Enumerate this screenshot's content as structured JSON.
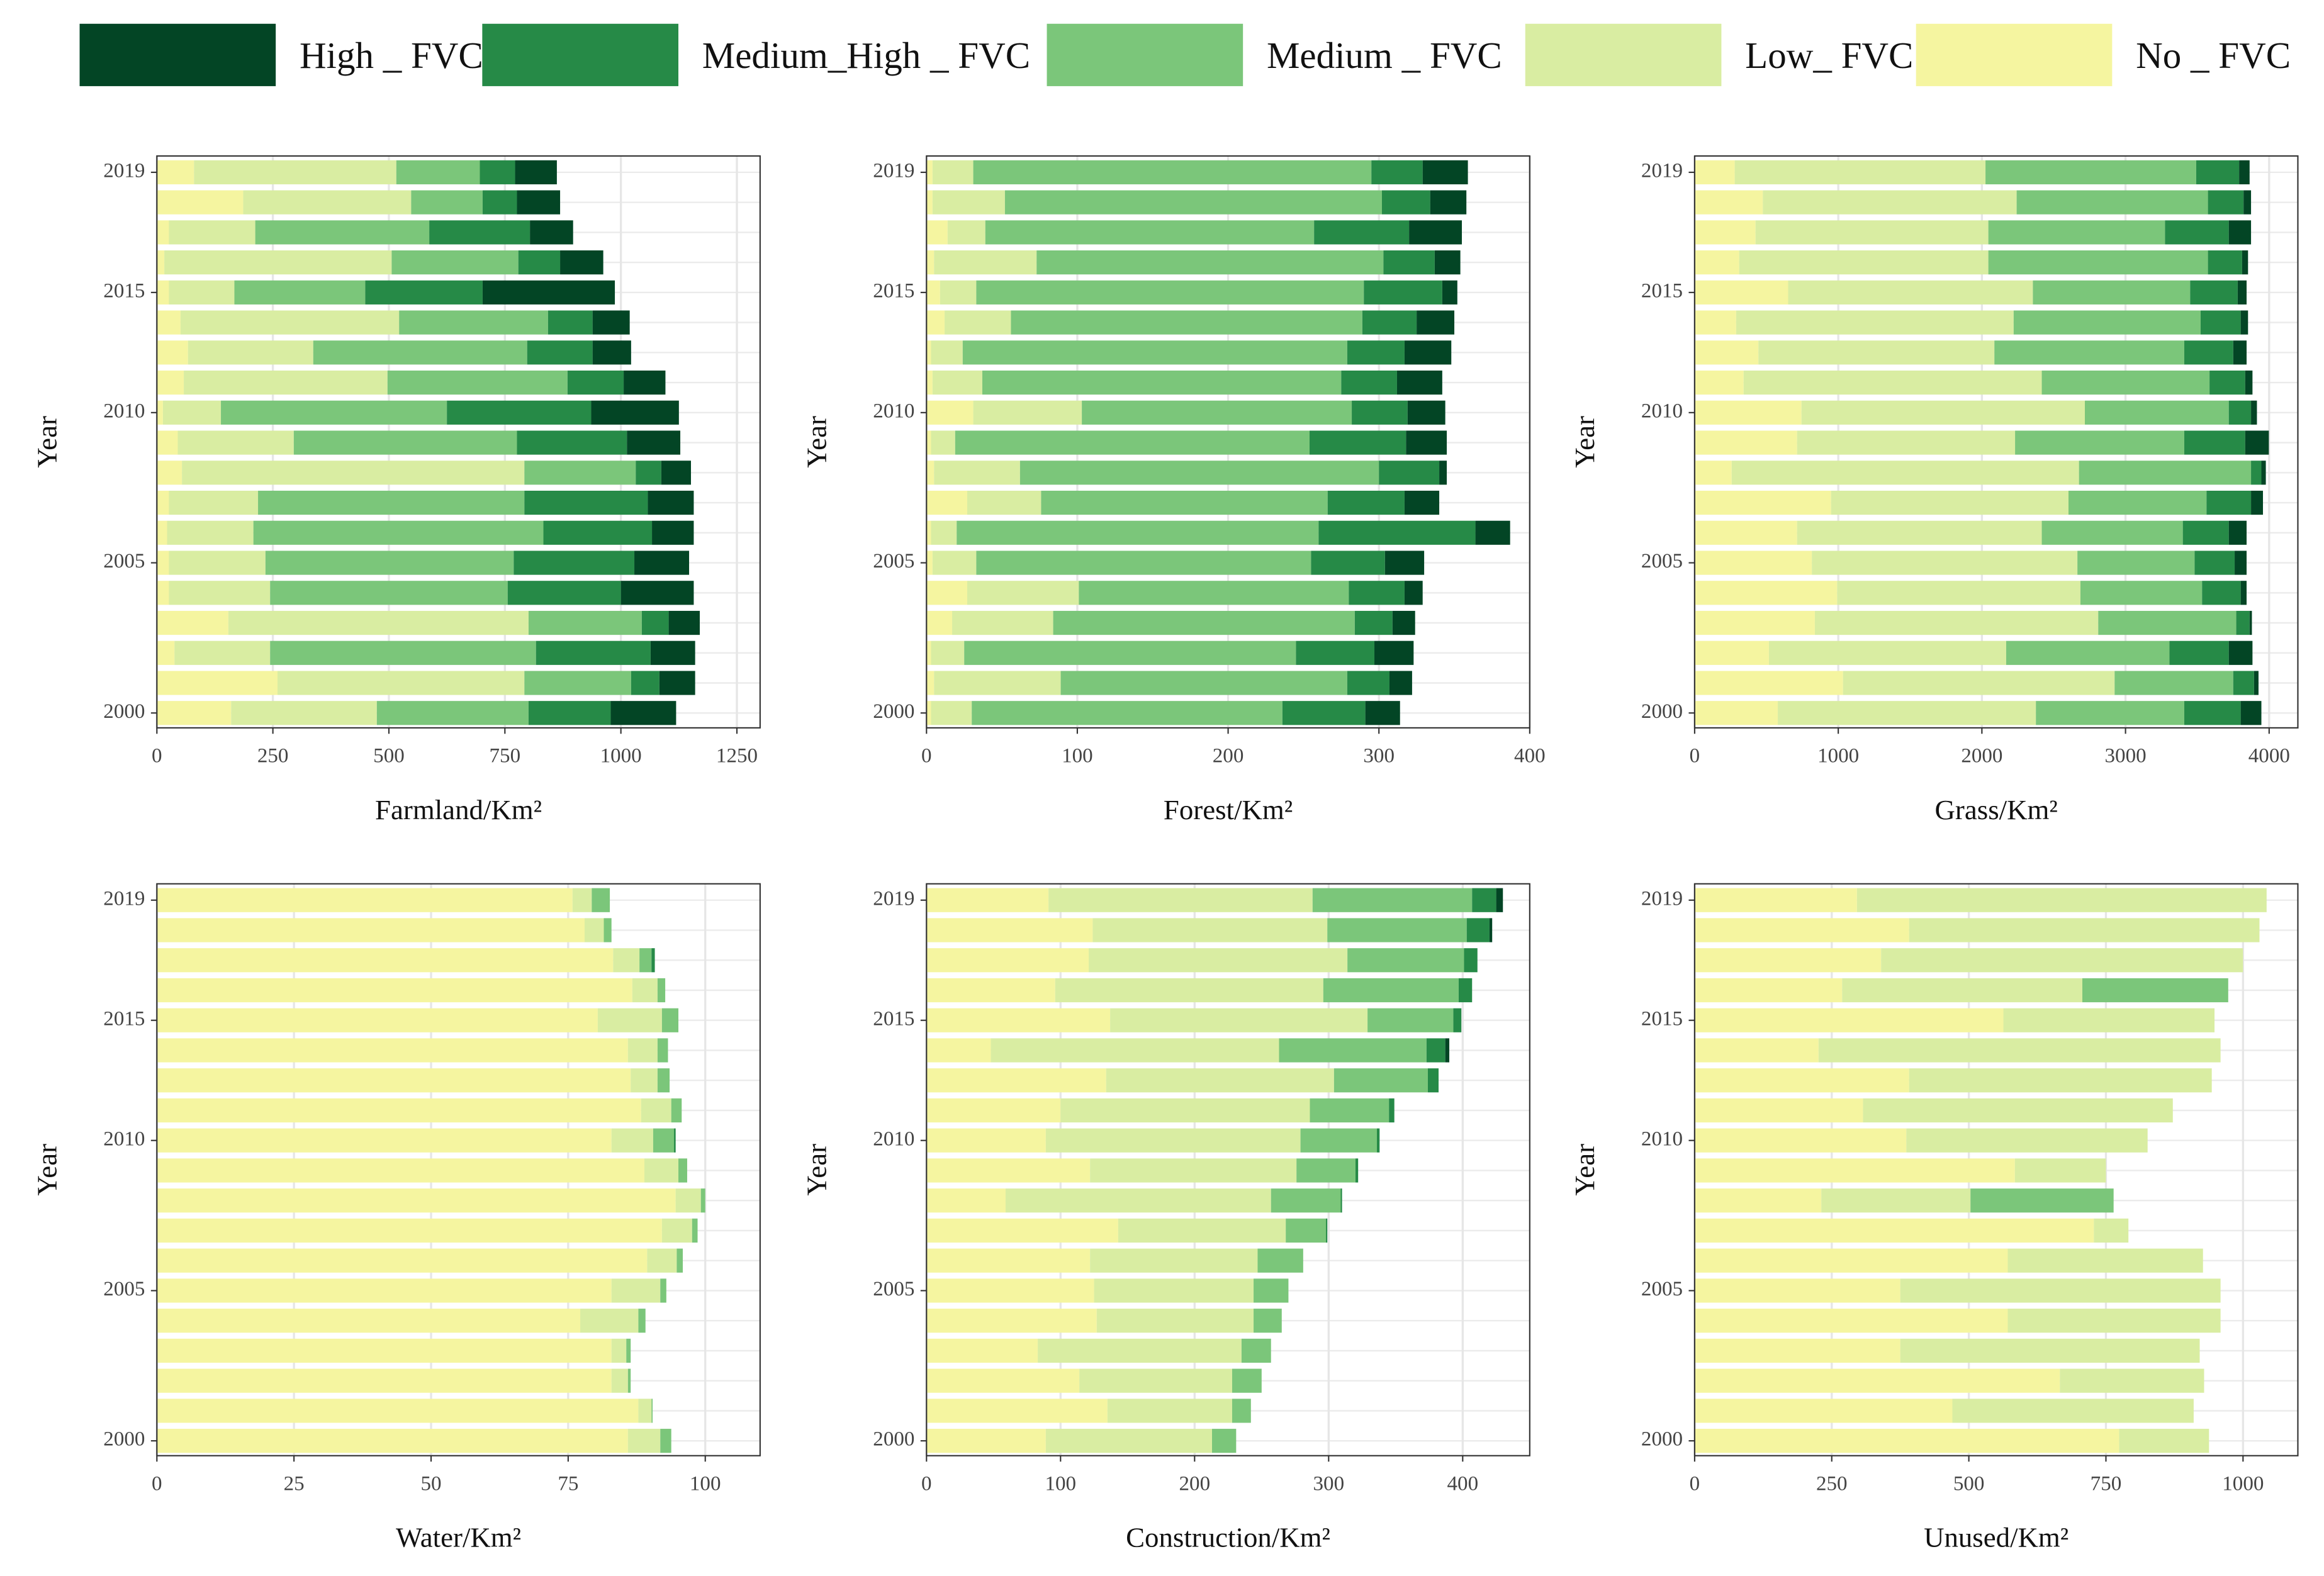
{
  "chart_data": [
    {
      "type": "bar",
      "orientation": "horizontal",
      "stacked": true,
      "grid": true,
      "xlabel": "Farmland/Km²",
      "ylabel": "Year",
      "categories": [
        "2000",
        null,
        null,
        null,
        null,
        "2005",
        null,
        null,
        null,
        null,
        "2010",
        null,
        null,
        null,
        "2015",
        null,
        null,
        null,
        "2019"
      ],
      "xlim": [
        0,
        1300
      ],
      "xticks": [
        0,
        250,
        500,
        750,
        1000,
        1250
      ],
      "series": [
        {
          "name": "High _ FVC",
          "color": "#034525",
          "values": [
            141,
            77,
            96,
            67,
            157,
            118,
            90,
            99,
            64,
            115,
            189,
            90,
            83,
            80,
            285,
            93,
            93,
            93,
            90
          ]
        },
        {
          "name": "Medium_High _ FVC",
          "color": "#268a47",
          "values": [
            177,
            61,
            247,
            58,
            244,
            260,
            234,
            266,
            55,
            237,
            311,
            121,
            141,
            96,
            253,
            90,
            217,
            74,
            76
          ]
        },
        {
          "name": "Medium _ FVC",
          "color": "#7bc67a",
          "values": [
            327,
            230,
            573,
            244,
            512,
            535,
            625,
            574,
            240,
            481,
            487,
            388,
            461,
            321,
            282,
            273,
            375,
            154,
            180
          ]
        },
        {
          "name": "Low_ FVC",
          "color": "#d9eda2",
          "values": [
            314,
            532,
            206,
            647,
            218,
            208,
            186,
            192,
            738,
            250,
            125,
            439,
            270,
            471,
            141,
            490,
            186,
            362,
            436
          ]
        },
        {
          "name": "No _ FVC",
          "color": "#f5f5a0",
          "values": [
            160,
            260,
            38,
            154,
            26,
            26,
            22,
            26,
            54,
            45,
            13,
            58,
            67,
            51,
            26,
            16,
            26,
            186,
            80
          ]
        }
      ]
    },
    {
      "type": "bar",
      "orientation": "horizontal",
      "stacked": true,
      "grid": true,
      "xlabel": "Forest/Km²",
      "ylabel": "Year",
      "categories": [
        "2000",
        null,
        null,
        null,
        null,
        "2005",
        null,
        null,
        null,
        null,
        "2010",
        null,
        null,
        null,
        "2015",
        null,
        null,
        null,
        "2019"
      ],
      "xlim": [
        0,
        400
      ],
      "xticks": [
        0,
        100,
        200,
        300,
        400
      ],
      "series": [
        {
          "values": [
            23,
            15,
            26,
            15,
            12,
            26,
            23,
            23,
            5,
            27,
            25,
            30,
            31,
            25,
            10,
            17,
            35,
            24,
            30
          ]
        },
        {
          "values": [
            55,
            28,
            52,
            25,
            37,
            49,
            104,
            51,
            40,
            64,
            37,
            37,
            38,
            36,
            52,
            34,
            63,
            32,
            34
          ]
        },
        {
          "values": [
            206,
            190,
            220,
            200,
            179,
            222,
            240,
            190,
            238,
            235,
            179,
            238,
            255,
            233,
            257,
            230,
            218,
            250,
            264
          ]
        },
        {
          "values": [
            27,
            84,
            22,
            67,
            74,
            29,
            17,
            49,
            57,
            16,
            72,
            33,
            21,
            44,
            24,
            68,
            25,
            48,
            27
          ]
        },
        {
          "values": [
            3,
            5,
            3,
            17,
            27,
            4,
            3,
            27,
            5,
            3,
            31,
            4,
            3,
            12,
            9,
            5,
            14,
            4,
            4
          ]
        }
      ]
    },
    {
      "type": "bar",
      "orientation": "horizontal",
      "stacked": true,
      "grid": true,
      "xlabel": "Grass/Km²",
      "ylabel": "Year",
      "categories": [
        "2000",
        null,
        null,
        null,
        null,
        "2005",
        null,
        null,
        null,
        null,
        "2010",
        null,
        null,
        null,
        "2015",
        null,
        null,
        null,
        "2019"
      ],
      "xlim": [
        0,
        4200
      ],
      "xticks": [
        0,
        1000,
        2000,
        3000,
        4000
      ],
      "series": [
        {
          "values": [
            144,
            31,
            165,
            16,
            41,
            83,
            124,
            83,
            31,
            165,
            41,
            51,
            93,
            51,
            62,
            41,
            155,
            52,
            73
          ]
        },
        {
          "values": [
            393,
            145,
            413,
            93,
            269,
            279,
            320,
            310,
            72,
            424,
            155,
            248,
            341,
            279,
            331,
            238,
            444,
            248,
            299
          ]
        },
        {
          "values": [
            1033,
            826,
            1137,
            961,
            847,
            816,
            982,
            961,
            1198,
            1178,
            1002,
            1168,
            1322,
            1302,
            1095,
            1529,
            1230,
            1332,
            1467
          ]
        },
        {
          "values": [
            1797,
            1891,
            1652,
            1973,
            1694,
            1849,
            1704,
            1653,
            2418,
            1518,
            1973,
            2076,
            1643,
            1932,
            1704,
            1735,
            1621,
            1767,
            1746
          ]
        },
        {
          "values": [
            579,
            1033,
            517,
            837,
            992,
            816,
            713,
            950,
            258,
            713,
            744,
            341,
            444,
            289,
            651,
            310,
            424,
            475,
            279
          ]
        }
      ]
    },
    {
      "type": "bar",
      "orientation": "horizontal",
      "stacked": true,
      "grid": true,
      "xlabel": "Water/Km²",
      "ylabel": "Year",
      "categories": [
        "2000",
        null,
        null,
        null,
        null,
        "2005",
        null,
        null,
        null,
        null,
        "2010",
        null,
        null,
        null,
        "2015",
        null,
        null,
        null,
        "2019"
      ],
      "xlim": [
        0,
        110
      ],
      "xticks": [
        0,
        25,
        50,
        75,
        100
      ],
      "series": [
        {
          "values": [
            0,
            0,
            0,
            0,
            0,
            0,
            0,
            0,
            0,
            0,
            0,
            0,
            0,
            0,
            0,
            0,
            0,
            0,
            0
          ]
        },
        {
          "values": [
            0,
            0,
            0,
            0,
            0,
            0,
            0,
            0,
            0,
            0,
            0.3,
            0,
            0,
            0,
            0,
            0,
            0.6,
            0,
            0
          ]
        },
        {
          "values": [
            2.0,
            0.2,
            0.5,
            0.8,
            1.3,
            1.1,
            1.1,
            1.0,
            0.8,
            1.6,
            3.8,
            1.9,
            2.2,
            1.9,
            3.0,
            1.4,
            2.2,
            1.4,
            3.3
          ]
        },
        {
          "values": [
            5.9,
            2.4,
            3.0,
            2.7,
            10.6,
            8.9,
            5.4,
            5.5,
            4.6,
            6.2,
            7.6,
            5.5,
            4.9,
            5.4,
            11.7,
            4.6,
            4.8,
            3.5,
            3.5
          ]
        },
        {
          "values": [
            85.9,
            87.8,
            82.9,
            82.9,
            77.2,
            82.9,
            89.4,
            92.1,
            94.6,
            88.9,
            82.9,
            88.3,
            86.4,
            85.9,
            80.4,
            86.7,
            83.2,
            78.0,
            75.8
          ]
        }
      ]
    },
    {
      "type": "bar",
      "orientation": "horizontal",
      "stacked": true,
      "grid": true,
      "xlabel": "Construction/Km²",
      "ylabel": "Year",
      "categories": [
        "2000",
        null,
        null,
        null,
        null,
        "2005",
        null,
        null,
        null,
        null,
        "2010",
        null,
        null,
        null,
        "2015",
        null,
        null,
        null,
        "2019"
      ],
      "xlim": [
        0,
        450
      ],
      "xticks": [
        0,
        100,
        200,
        300,
        400
      ],
      "series": [
        {
          "values": [
            0,
            0,
            0,
            0,
            0,
            0,
            0,
            0,
            0,
            0,
            0,
            0,
            0,
            3,
            0,
            0,
            0,
            2,
            5
          ]
        },
        {
          "values": [
            0,
            0,
            0,
            0,
            0,
            0,
            0,
            1,
            1,
            2,
            2,
            4,
            8,
            14,
            6,
            10,
            10,
            17,
            18
          ]
        },
        {
          "values": [
            18,
            14,
            22,
            22,
            21,
            26,
            34,
            30,
            52,
            44,
            57,
            59,
            70,
            110,
            64,
            101,
            87,
            104,
            119
          ]
        },
        {
          "values": [
            124,
            93,
            114,
            152,
            117,
            119,
            125,
            125,
            198,
            154,
            190,
            186,
            170,
            215,
            192,
            200,
            193,
            175,
            197
          ]
        },
        {
          "values": [
            89,
            135,
            114,
            83,
            127,
            125,
            122,
            143,
            59,
            122,
            89,
            100,
            134,
            48,
            137,
            96,
            121,
            124,
            91
          ]
        }
      ]
    },
    {
      "type": "bar",
      "orientation": "horizontal",
      "stacked": true,
      "grid": true,
      "xlabel": "Unused/Km²",
      "ylabel": "Year",
      "categories": [
        "2000",
        null,
        null,
        null,
        null,
        "2005",
        null,
        null,
        null,
        null,
        "2010",
        null,
        null,
        null,
        "2015",
        null,
        null,
        null,
        "2019"
      ],
      "xlim": [
        0,
        1100
      ],
      "xticks": [
        0,
        250,
        500,
        750,
        1000
      ],
      "series": [
        {
          "values": [
            0,
            0,
            0,
            0,
            0,
            0,
            0,
            0,
            0,
            0,
            0,
            0,
            0,
            0,
            0,
            0,
            0,
            0,
            0
          ]
        },
        {
          "values": [
            0,
            0,
            0,
            0,
            0,
            0,
            0,
            0,
            0,
            0,
            0,
            0,
            0,
            0,
            0,
            0,
            0,
            0,
            0
          ]
        },
        {
          "values": [
            0,
            0,
            0,
            0,
            0,
            0,
            0,
            0,
            261,
            0,
            0,
            0,
            0,
            0,
            0,
            266,
            0,
            0,
            0
          ]
        },
        {
          "values": [
            164,
            440,
            263,
            546,
            388,
            584,
            356,
            63,
            272,
            166,
            440,
            565,
            552,
            733,
            385,
            438,
            660,
            639,
            747
          ]
        },
        {
          "values": [
            774,
            470,
            666,
            375,
            571,
            375,
            571,
            728,
            231,
            584,
            386,
            307,
            391,
            226,
            563,
            269,
            340,
            391,
            296
          ]
        }
      ]
    }
  ]
}
